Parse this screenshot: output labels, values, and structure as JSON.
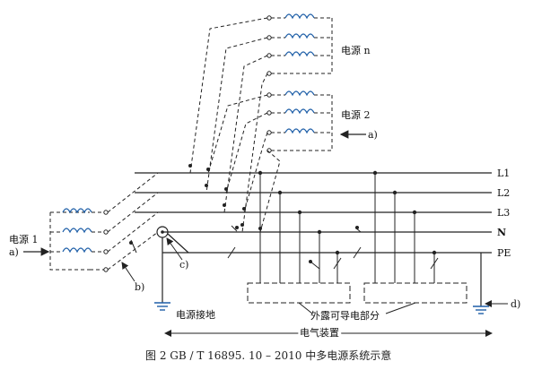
{
  "labels": {
    "source_n": "电源 n",
    "source_2": "电源 2",
    "source_1": "电源 1",
    "L1": "L1",
    "L2": "L2",
    "L3": "L3",
    "N": "N",
    "PE": "PE",
    "a_right": "a)",
    "a_left": "a)",
    "b": "b)",
    "c": "c)",
    "d": "d)",
    "grounding": "电源接地",
    "exposed_parts": "外露可导电部分",
    "installation": "电气装置"
  },
  "caption": "图 2    GB / T  16895. 10 – 2010 中多电源系统示意",
  "colors": {
    "line": "#222222",
    "coil": "#1f5fa8"
  }
}
